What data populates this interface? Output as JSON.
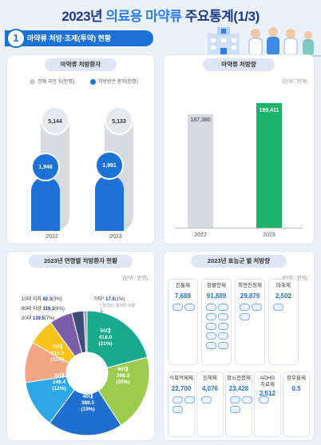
{
  "page": {
    "title_prefix": "2023년 ",
    "title_highlight": "의료용 마약류",
    "title_suffix": " 주요통계(1/3)",
    "section_number": "1",
    "section_title": "마약류 처방·조제(투약) 현황"
  },
  "colors": {
    "navy": "#1d3a8a",
    "blue": "#1d72d6",
    "grey": "#d6dbe3",
    "green": "#1cb36b"
  },
  "chart_data": [
    {
      "type": "bar",
      "title": "마약류 처방환자",
      "categories": [
        "2022",
        "2023"
      ],
      "series": [
        {
          "name": "전체 국민 수(만명)",
          "values": [
            5144,
            5133
          ],
          "labels": [
            "5,144",
            "5,133"
          ]
        },
        {
          "name": "처방받은 환자(만명)",
          "values": [
            1946,
            1991
          ],
          "labels": [
            "1,946",
            "1,991"
          ]
        }
      ],
      "legend": "top"
    },
    {
      "type": "bar",
      "title": "마약류 처방량",
      "unit": "(단위 : 만개)",
      "categories": [
        "2022",
        "2023"
      ],
      "values": [
        187380,
        189411
      ],
      "labels": [
        "187,380",
        "189,411"
      ]
    },
    {
      "type": "pie",
      "title": "2023년 연령별 처방환자 현황",
      "unit": "(단위 : 만명)",
      "slices": [
        {
          "name": "50대",
          "value": 418.0,
          "label": "418.0",
          "percent": "(21%)",
          "color": "#19a98c"
        },
        {
          "name": "60대",
          "value": 398.3,
          "label": "398.3",
          "percent": "(20%)",
          "color": "#9ccc4e"
        },
        {
          "name": "40대",
          "value": 388.5,
          "label": "388.5",
          "percent": "(19%)",
          "color": "#1f6fcf"
        },
        {
          "name": "30대",
          "value": 246.4,
          "label": "246.4",
          "percent": "(12%)",
          "color": "#2ea7e6"
        },
        {
          "name": "70대",
          "value": 210.3,
          "label": "210.3",
          "percent": "(11%)",
          "color": "#f2a582"
        },
        {
          "name": "20대",
          "value": 139.5,
          "label": "139.5",
          "percent": "(7%)",
          "color": "#f6c21b"
        },
        {
          "name": "80대 이상",
          "value": 119.3,
          "label": "119.3",
          "percent": "(6%)",
          "color": "#7b5ea8"
        },
        {
          "name": "10대 이하",
          "value": 62.3,
          "label": "62.3",
          "percent": "(3%)",
          "color": "#3b4f7a"
        },
        {
          "name": "기타*",
          "value": 17.0,
          "label": "17.0",
          "percent": "(1%)",
          "color": "#9aa4b5"
        }
      ],
      "note": "* 외국인, 데이터 오류 등"
    },
    {
      "type": "table",
      "title": "2023년 효능군 별 처방량",
      "unit": "(단위 : 만개)",
      "items": [
        {
          "name": "진통제",
          "value": "7,689",
          "capsules": 2
        },
        {
          "name": "항불안제",
          "value": "91,889",
          "capsules": 10
        },
        {
          "name": "최면진정제",
          "value": "29,879",
          "capsules": 3
        },
        {
          "name": "마취제",
          "value": "2,502",
          "capsules": 1
        },
        {
          "name": "식욕억제제",
          "value": "22,700",
          "capsules": 3
        },
        {
          "name": "진해제",
          "value": "4,076",
          "capsules": 1
        },
        {
          "name": "항뇌전증제",
          "value": "23,428",
          "capsules": 3
        },
        {
          "name": "ADHD\n치료제",
          "value": "2,512",
          "capsules": 1
        },
        {
          "name": "항우울제",
          "value": "0.5",
          "capsules": 0
        }
      ]
    }
  ]
}
